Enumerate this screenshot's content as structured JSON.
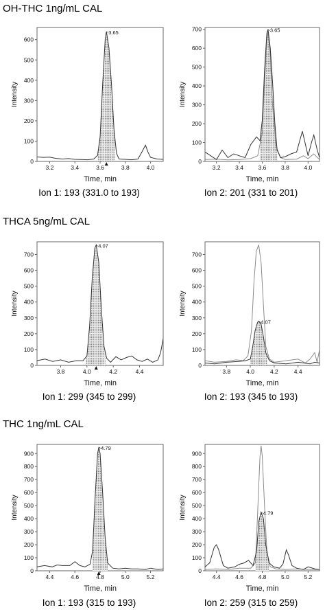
{
  "sections": [
    {
      "title": "OH-THC 1ng/mL CAL",
      "panels": [
        {
          "caption": "Ion 1: 193 (331.0 to 193)",
          "chart_data": {
            "type": "line",
            "xlabel": "Time, min",
            "ylabel": "Intensity",
            "xlim": [
              3.1,
              4.1
            ],
            "ylim": [
              0,
              660
            ],
            "xticks": [
              "3.2",
              "3.4",
              "3.6",
              "3.8",
              "4.0"
            ],
            "yticks": [
              "0",
              "100",
              "200",
              "300",
              "400",
              "500",
              "600"
            ],
            "peak_label": "3.65",
            "peak_marker": true,
            "integration": {
              "start": 3.58,
              "end": 3.72
            },
            "series": [
              {
                "x": [
                  3.1,
                  3.15,
                  3.2,
                  3.25,
                  3.3,
                  3.35,
                  3.4,
                  3.45,
                  3.5,
                  3.55,
                  3.58,
                  3.6,
                  3.62,
                  3.64,
                  3.65,
                  3.67,
                  3.69,
                  3.71,
                  3.73,
                  3.75,
                  3.8,
                  3.85,
                  3.9,
                  3.93,
                  3.96,
                  3.98,
                  4.0,
                  4.05,
                  4.1
                ],
                "y": [
                  22,
                  20,
                  21,
                  15,
                  12,
                  14,
                  10,
                  9,
                  8,
                  12,
                  30,
                  120,
                  380,
                  600,
                  640,
                  560,
                  380,
                  160,
                  40,
                  12,
                  10,
                  8,
                  12,
                  45,
                  80,
                  45,
                  20,
                  12,
                  10
                ]
              }
            ]
          }
        },
        {
          "caption": "Ion 2: 201 (331 to 201)",
          "chart_data": {
            "type": "line",
            "xlabel": "Time, min",
            "ylabel": "Intensity",
            "xlim": [
              3.1,
              4.1
            ],
            "ylim": [
              0,
              710
            ],
            "xticks": [
              "3.2",
              "3.4",
              "3.6",
              "3.8",
              "4.0"
            ],
            "yticks": [
              "0",
              "100",
              "200",
              "300",
              "400",
              "500",
              "600",
              "700"
            ],
            "peak_label": "3.65",
            "peak_marker": false,
            "integration": {
              "start": 3.58,
              "end": 3.73
            },
            "series": [
              {
                "x": [
                  3.1,
                  3.15,
                  3.2,
                  3.25,
                  3.3,
                  3.35,
                  3.4,
                  3.45,
                  3.5,
                  3.55,
                  3.58,
                  3.6,
                  3.62,
                  3.64,
                  3.65,
                  3.67,
                  3.69,
                  3.71,
                  3.73,
                  3.76,
                  3.8,
                  3.85,
                  3.9,
                  3.95,
                  4.0,
                  4.03,
                  4.05,
                  4.08,
                  4.1
                ],
                "y": [
                  50,
                  30,
                  10,
                  60,
                  20,
                  40,
                  30,
                  20,
                  90,
                  130,
                  110,
                  220,
                  480,
                  680,
                  700,
                  600,
                  420,
                  200,
                  60,
                  20,
                  25,
                  40,
                  50,
                  160,
                  30,
                  100,
                  140,
                  60,
                  20
                ]
              },
              {
                "x": [
                  3.1,
                  3.2,
                  3.3,
                  3.4,
                  3.5,
                  3.56,
                  3.6,
                  3.62,
                  3.64,
                  3.65,
                  3.67,
                  3.69,
                  3.72,
                  3.76,
                  3.8,
                  3.9,
                  3.96,
                  4.0,
                  4.05,
                  4.1
                ],
                "y": [
                  10,
                  12,
                  8,
                  10,
                  15,
                  30,
                  150,
                  420,
                  640,
                  690,
                  560,
                  300,
                  80,
                  20,
                  10,
                  12,
                  30,
                  15,
                  40,
                  10
                ]
              }
            ]
          }
        }
      ]
    },
    {
      "title": "THCA 5ng/mL CAL",
      "panels": [
        {
          "caption": "Ion 1: 299 (345 to 299)",
          "chart_data": {
            "type": "line",
            "xlabel": "Time, min",
            "ylabel": "Intensity",
            "xlim": [
              3.62,
              4.58
            ],
            "ylim": [
              0,
              780
            ],
            "xticks": [
              "3.8",
              "4.0",
              "4.2",
              "4.4"
            ],
            "yticks": [
              "0",
              "100",
              "200",
              "300",
              "400",
              "500",
              "600",
              "700"
            ],
            "peak_label": "4.07",
            "peak_marker": true,
            "integration": {
              "start": 3.99,
              "end": 4.14
            },
            "series": [
              {
                "x": [
                  3.62,
                  3.68,
                  3.74,
                  3.8,
                  3.86,
                  3.92,
                  3.97,
                  4.0,
                  4.02,
                  4.04,
                  4.06,
                  4.07,
                  4.09,
                  4.11,
                  4.13,
                  4.15,
                  4.18,
                  4.22,
                  4.26,
                  4.3,
                  4.34,
                  4.38,
                  4.42,
                  4.46,
                  4.5,
                  4.54,
                  4.56,
                  4.58
                ],
                "y": [
                  30,
                  40,
                  25,
                  35,
                  20,
                  30,
                  30,
                  60,
                  250,
                  550,
                  740,
                  760,
                  650,
                  350,
                  120,
                  45,
                  20,
                  55,
                  35,
                  50,
                  60,
                  35,
                  25,
                  40,
                  20,
                  35,
                  80,
                  170
                ]
              }
            ]
          }
        },
        {
          "caption": "Ion 2: 193 (345 to 193)",
          "chart_data": {
            "type": "line",
            "xlabel": "Time, min",
            "ylabel": "Intensity",
            "xlim": [
              3.62,
              4.58
            ],
            "ylim": [
              0,
              780
            ],
            "xticks": [
              "3.8",
              "4.0",
              "4.2",
              "4.4"
            ],
            "yticks": [
              "0",
              "100",
              "200",
              "300",
              "400",
              "500",
              "600",
              "700"
            ],
            "peak_label": "4.07",
            "peak_marker": false,
            "integration": {
              "start": 4.0,
              "end": 4.14
            },
            "series": [
              {
                "x": [
                  3.62,
                  3.7,
                  3.8,
                  3.9,
                  3.96,
                  4.0,
                  4.02,
                  4.04,
                  4.06,
                  4.07,
                  4.09,
                  4.11,
                  4.13,
                  4.16,
                  4.2,
                  4.3,
                  4.4,
                  4.45,
                  4.5,
                  4.54,
                  4.58
                ],
                "y": [
                  15,
                  10,
                  20,
                  25,
                  30,
                  40,
                  120,
                  220,
                  270,
                  280,
                  260,
                  180,
                  80,
                  30,
                  15,
                  10,
                  20,
                  15,
                  10,
                  20,
                  15
                ]
              },
              {
                "x": [
                  3.62,
                  3.7,
                  3.8,
                  3.88,
                  3.94,
                  3.98,
                  4.01,
                  4.03,
                  4.05,
                  4.07,
                  4.09,
                  4.11,
                  4.13,
                  4.16,
                  4.2,
                  4.3,
                  4.4,
                  4.46,
                  4.5,
                  4.54,
                  4.56,
                  4.58
                ],
                "y": [
                  30,
                  20,
                  25,
                  35,
                  30,
                  60,
                  220,
                  520,
                  720,
                  760,
                  650,
                  380,
                  120,
                  40,
                  20,
                  30,
                  40,
                  15,
                  40,
                  80,
                  20,
                  100
                ]
              }
            ]
          }
        }
      ]
    },
    {
      "title": "THC 1ng/mL CAL",
      "panels": [
        {
          "caption": "Ion 1: 193 (315 to 193)",
          "chart_data": {
            "type": "line",
            "xlabel": "Time, min",
            "ylabel": "Intensity",
            "xlim": [
              4.3,
              5.3
            ],
            "ylim": [
              0,
              970
            ],
            "xticks": [
              "4.4",
              "4.6",
              "4.8",
              "5.0",
              "5.2"
            ],
            "yticks": [
              "0",
              "100",
              "200",
              "300",
              "400",
              "500",
              "600",
              "700",
              "800",
              "900"
            ],
            "peak_label": "4.79",
            "peak_marker": true,
            "integration": {
              "start": 4.74,
              "end": 4.86
            },
            "series": [
              {
                "x": [
                  4.3,
                  4.36,
                  4.42,
                  4.46,
                  4.5,
                  4.56,
                  4.6,
                  4.64,
                  4.68,
                  4.72,
                  4.74,
                  4.76,
                  4.78,
                  4.79,
                  4.8,
                  4.82,
                  4.84,
                  4.86,
                  4.9,
                  4.95,
                  5.0,
                  5.05,
                  5.1,
                  5.16,
                  5.2,
                  5.26,
                  5.3
                ],
                "y": [
                  30,
                  40,
                  30,
                  45,
                  40,
                  40,
                  70,
                  40,
                  30,
                  50,
                  150,
                  550,
                  900,
                  950,
                  900,
                  600,
                  250,
                  60,
                  20,
                  15,
                  20,
                  15,
                  15,
                  10,
                  20,
                  10,
                  15
                ]
              }
            ]
          }
        },
        {
          "caption": "Ion 2: 259 (315 to 259)",
          "chart_data": {
            "type": "line",
            "xlabel": "Time, min",
            "ylabel": "Intensity",
            "xlim": [
              4.3,
              5.3
            ],
            "ylim": [
              0,
              970
            ],
            "xticks": [
              "4.4",
              "4.6",
              "4.8",
              "5.0",
              "5.2"
            ],
            "yticks": [
              "0",
              "100",
              "200",
              "300",
              "400",
              "500",
              "600",
              "700",
              "800",
              "900"
            ],
            "peak_label": "4.79",
            "peak_marker": false,
            "integration": {
              "start": 4.74,
              "end": 4.86
            },
            "series": [
              {
                "x": [
                  4.3,
                  4.34,
                  4.38,
                  4.4,
                  4.42,
                  4.46,
                  4.5,
                  4.56,
                  4.6,
                  4.64,
                  4.68,
                  4.72,
                  4.75,
                  4.77,
                  4.79,
                  4.81,
                  4.83,
                  4.86,
                  4.9,
                  4.95,
                  4.98,
                  5.01,
                  5.03,
                  5.06,
                  5.1,
                  5.16,
                  5.2,
                  5.26,
                  5.3
                ],
                "y": [
                  30,
                  60,
                  180,
                  200,
                  160,
                  40,
                  20,
                  30,
                  50,
                  60,
                  80,
                  40,
                  150,
                  380,
                  450,
                  400,
                  200,
                  60,
                  30,
                  20,
                  50,
                  160,
                  120,
                  40,
                  20,
                  10,
                  30,
                  15,
                  10
                ]
              },
              {
                "x": [
                  4.3,
                  4.4,
                  4.5,
                  4.6,
                  4.7,
                  4.74,
                  4.76,
                  4.78,
                  4.79,
                  4.8,
                  4.82,
                  4.84,
                  4.87,
                  4.92,
                  5.0,
                  5.1,
                  5.2,
                  5.3
                ],
                "y": [
                  10,
                  15,
                  10,
                  20,
                  20,
                  60,
                  450,
                  880,
                  960,
                  880,
                  500,
                  150,
                  30,
                  15,
                  10,
                  15,
                  10,
                  10
                ]
              }
            ]
          }
        }
      ]
    }
  ]
}
